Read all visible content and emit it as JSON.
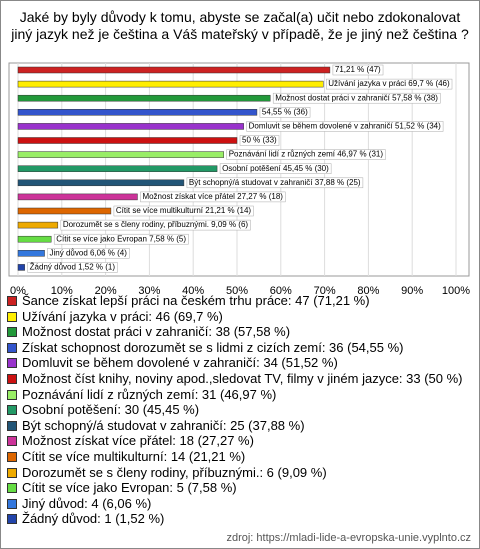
{
  "chart_data": {
    "type": "bar",
    "orientation": "horizontal",
    "title": "Jaké by byly důvody k tomu, abyste se začal(a) učit nebo zdokonalovat jiný jazyk než je čeština a Váš mateřský v případě, že je jiný než čeština ?",
    "categories": [
      "Šance získat lepší práci na českém trhu práce: 47 (71,21 %)",
      "Užívání jazyka v práci: 46 (69,7 %)",
      "Možnost dostat práci v zahraničí: 38 (57,58 %)",
      "Získat schopnost dorozumět se s lidmi z cizích zemí: 36 (54,55 %)",
      "Domluvit se během dovolené v zahraničí: 34 (51,52 %)",
      "Možnost číst knihy, noviny apod.,sledovat TV, filmy v jiném jazyce: 33 (50 %)",
      "Poznávání lidí z různých zemí: 31 (46,97 %)",
      "Osobní potěšení: 30 (45,45 %)",
      "Být schopný/á studovat v zahraničí: 25 (37,88 %)",
      "Možnost získat více přátel: 18 (27,27 %)",
      "Cítit se více multikulturní: 14 (21,21 %)",
      "Dorozumět se s členy rodiny, příbuznými.: 6 (9,09 %)",
      "Cítit se více jako Evropan: 5 (7,58 %)",
      "Jiný důvod: 4 (6,06 %)",
      "Žádný důvod: 1 (1,52 %)"
    ],
    "values": [
      71.21,
      69.7,
      57.58,
      54.55,
      51.52,
      50,
      46.97,
      45.45,
      37.88,
      27.27,
      21.21,
      9.09,
      7.58,
      6.06,
      1.52
    ],
    "value_labels": [
      "71,21 % (47)",
      "Užívání jazyka v práci 69,7 % (46)",
      "Možnost dostat práci v zahraničí 57,58 % (38)",
      "54,55 % (36)",
      "Domluvit se během dovolené v zahraničí 51,52 % (34)",
      "50 % (33)",
      "Poznávání lidí z různých zemí 46,97 % (31)",
      "Osobní potěšení 45,45 % (30)",
      "Být schopný/á studovat v zahraničí 37,88 % (25)",
      "Možnost získat více přátel 27,27 % (18)",
      "Cítit se více multikulturní 21,21 % (14)",
      "Dorozumět se s členy rodiny, příbuznými. 9,09 % (6)",
      "Cítit se více jako Evropan 7,58 % (5)",
      "Jiný důvod 6,06 % (4)",
      "Žádný důvod 1,52 % (1)"
    ],
    "colors": [
      "#cc2222",
      "#ffee00",
      "#22993a",
      "#3355cc",
      "#9933cc",
      "#cc1111",
      "#99ee66",
      "#229966",
      "#225577",
      "#cc3399",
      "#dd6600",
      "#eeaa00",
      "#66dd44",
      "#3377dd",
      "#2244aa"
    ],
    "xlim": [
      0,
      100
    ],
    "xticks": [
      {
        "value": 0,
        "label": "0%"
      },
      {
        "value": 10,
        "label": "10%"
      },
      {
        "value": 20,
        "label": "20%"
      },
      {
        "value": 30,
        "label": "30%"
      },
      {
        "value": 40,
        "label": "40%"
      },
      {
        "value": 50,
        "label": "50%"
      },
      {
        "value": 60,
        "label": "60%"
      },
      {
        "value": 70,
        "label": "70%"
      },
      {
        "value": 80,
        "label": "80%"
      },
      {
        "value": 90,
        "label": "90%"
      },
      {
        "value": 100,
        "label": "100%"
      }
    ],
    "grid": true,
    "source": "zdroj: https://mladi-lide-a-evropska-unie.vyplnto.cz"
  }
}
